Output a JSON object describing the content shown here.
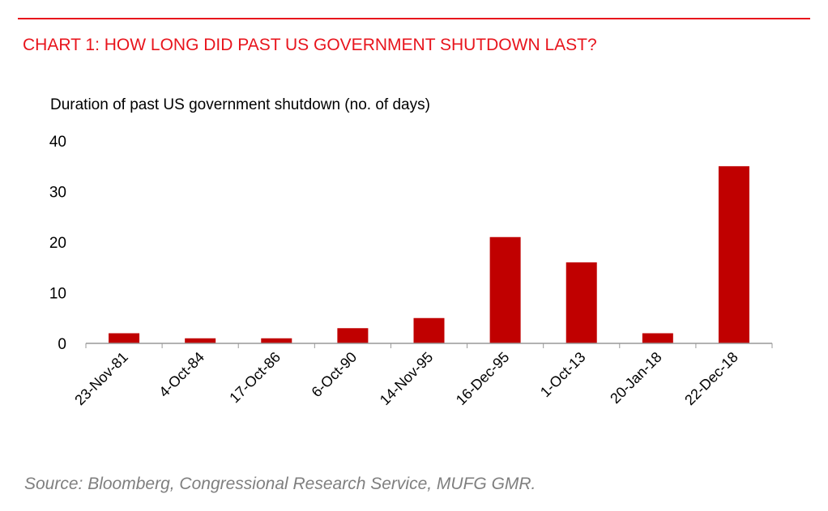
{
  "header": {
    "title": "CHART 1: HOW LONG DID PAST US GOVERNMENT SHUTDOWN LAST?"
  },
  "footer": {
    "source": "Source: Bloomberg, Congressional Research Service, MUFG GMR."
  },
  "chart_data": {
    "type": "bar",
    "title": "Duration of past US government shutdown (no. of days)",
    "categories": [
      "23-Nov-81",
      "4-Oct-84",
      "17-Oct-86",
      "6-Oct-90",
      "14-Nov-95",
      "16-Dec-95",
      "1-Oct-13",
      "20-Jan-18",
      "22-Dec-18"
    ],
    "values": [
      2,
      1,
      1,
      3,
      5,
      21,
      16,
      2,
      35
    ],
    "ylim": [
      0,
      40
    ],
    "yticks": [
      0,
      10,
      20,
      30,
      40
    ],
    "grid": false,
    "bar_color": "#c00000"
  }
}
